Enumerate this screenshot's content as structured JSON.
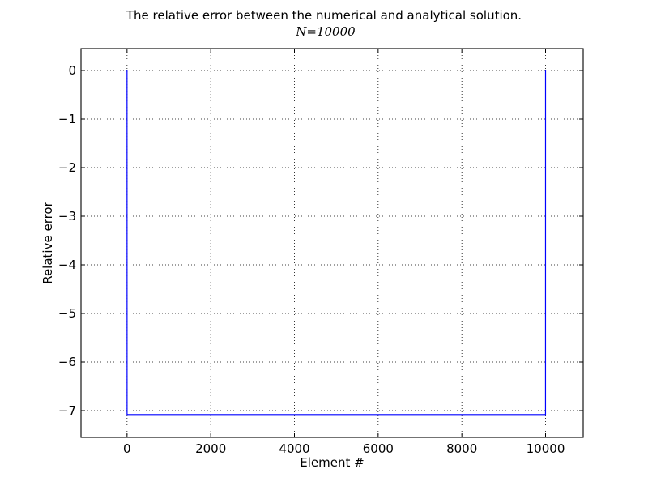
{
  "chart_data": {
    "type": "line",
    "title": "The relative error between the numerical and analytical solution.",
    "subtitle": "N=10000",
    "xlabel": "Element #",
    "ylabel": "Relative error",
    "xlim": [
      -1100,
      10900
    ],
    "ylim": [
      -7.55,
      0.45
    ],
    "x_ticks": [
      0,
      2000,
      4000,
      6000,
      8000,
      10000
    ],
    "x_tick_labels": [
      "0",
      "2000",
      "4000",
      "6000",
      "8000",
      "10000"
    ],
    "y_ticks": [
      0,
      -1,
      -2,
      -3,
      -4,
      -5,
      -6,
      -7
    ],
    "y_tick_labels": [
      "0",
      "−1",
      "−2",
      "−3",
      "−4",
      "−5",
      "−6",
      "−7"
    ],
    "grid": true,
    "series": [
      {
        "color": "#0000ff",
        "x": [
          0,
          1,
          9999,
          10000
        ],
        "y": [
          0,
          -7.08,
          -7.08,
          0
        ]
      }
    ]
  }
}
